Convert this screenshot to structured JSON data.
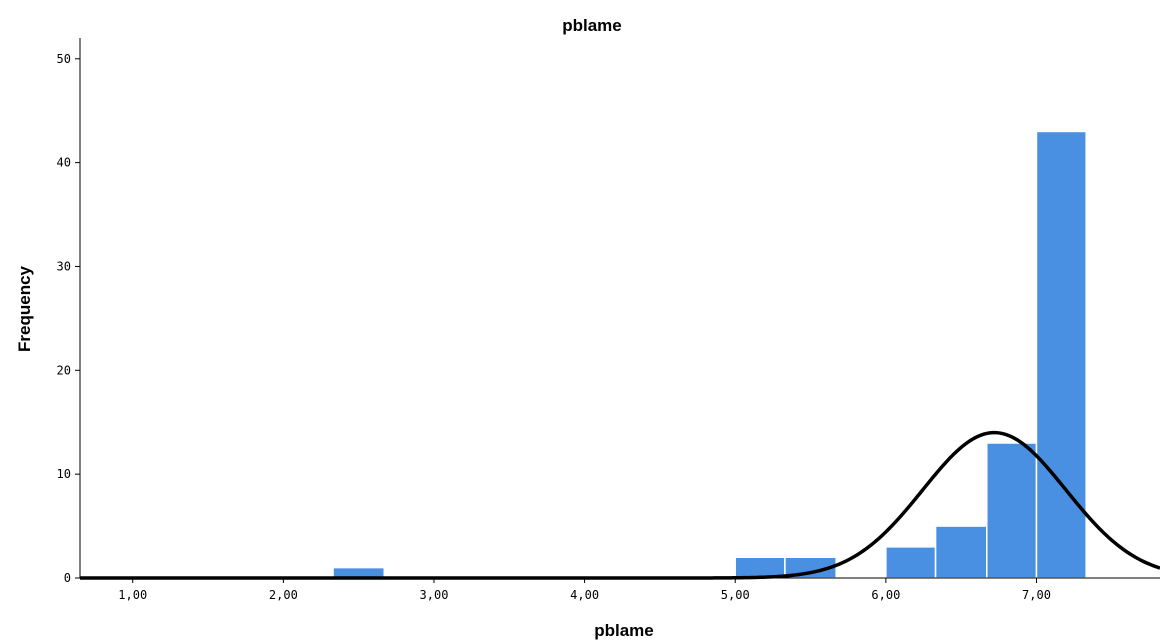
{
  "chart_data": {
    "type": "bar",
    "title": "pblame",
    "xlabel": "pblame",
    "ylabel": "Frequency",
    "bar_color": "#4a90e2",
    "curve_color": "#000000",
    "xlim": [
      0.65,
      7.82
    ],
    "ylim": [
      0,
      52
    ],
    "x_ticks": [
      1,
      2,
      3,
      4,
      5,
      6,
      7
    ],
    "x_tick_labels": [
      "1,00",
      "2,00",
      "3,00",
      "4,00",
      "5,00",
      "6,00",
      "7,00"
    ],
    "y_ticks": [
      0,
      10,
      20,
      30,
      40,
      50
    ],
    "y_tick_labels": [
      "0",
      "10",
      "20",
      "30",
      "40",
      "50"
    ],
    "bin_width": 0.333,
    "bins": [
      {
        "start": 2.33,
        "end": 2.67,
        "count": 1
      },
      {
        "start": 5.0,
        "end": 5.33,
        "count": 2
      },
      {
        "start": 5.33,
        "end": 5.67,
        "count": 2
      },
      {
        "start": 6.0,
        "end": 6.33,
        "count": 3
      },
      {
        "start": 6.33,
        "end": 6.67,
        "count": 5
      },
      {
        "start": 6.67,
        "end": 7.0,
        "count": 13
      },
      {
        "start": 7.0,
        "end": 7.33,
        "count": 43
      }
    ],
    "normal_curve": {
      "mean": 6.72,
      "sd": 0.475,
      "peak": 14
    },
    "grid": false,
    "legend": "none"
  }
}
